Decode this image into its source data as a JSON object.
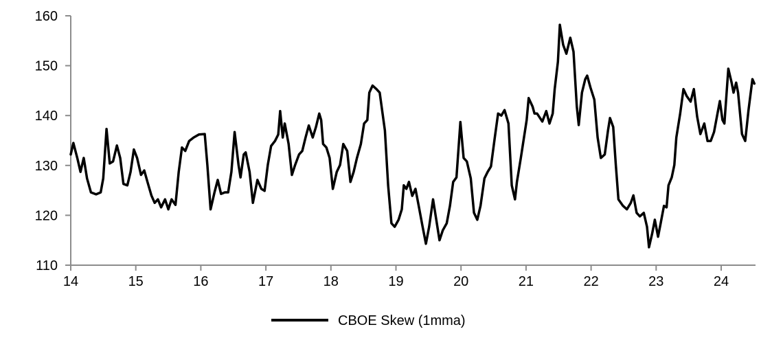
{
  "chart_data": {
    "type": "line",
    "title": "",
    "xlabel": "",
    "ylabel": "",
    "xlim": [
      14,
      24.53
    ],
    "ylim": [
      110,
      160
    ],
    "x_ticks": [
      "14",
      "15",
      "16",
      "17",
      "18",
      "19",
      "20",
      "21",
      "22",
      "23",
      "24"
    ],
    "y_ticks": [
      "110",
      "120",
      "130",
      "140",
      "150",
      "160"
    ],
    "grid": false,
    "legend_position": "bottom",
    "axis_color": "#8c8c8c",
    "series": [
      {
        "name": "CBOE Skew (1mma)",
        "color": "#000000",
        "points": [
          [
            14.0,
            132.2
          ],
          [
            14.04,
            134.5
          ],
          [
            14.1,
            131.5
          ],
          [
            14.15,
            128.7
          ],
          [
            14.2,
            131.5
          ],
          [
            14.25,
            127.4
          ],
          [
            14.31,
            124.6
          ],
          [
            14.39,
            124.2
          ],
          [
            14.46,
            124.6
          ],
          [
            14.5,
            127.4
          ],
          [
            14.55,
            137.3
          ],
          [
            14.6,
            130.4
          ],
          [
            14.65,
            130.8
          ],
          [
            14.71,
            134.0
          ],
          [
            14.76,
            131.5
          ],
          [
            14.81,
            126.3
          ],
          [
            14.87,
            126.0
          ],
          [
            14.92,
            128.7
          ],
          [
            14.97,
            133.2
          ],
          [
            15.02,
            131.5
          ],
          [
            15.08,
            128.1
          ],
          [
            15.13,
            129.0
          ],
          [
            15.18,
            126.7
          ],
          [
            15.24,
            124.0
          ],
          [
            15.29,
            122.5
          ],
          [
            15.34,
            123.2
          ],
          [
            15.39,
            121.6
          ],
          [
            15.45,
            123.2
          ],
          [
            15.5,
            121.2
          ],
          [
            15.55,
            123.2
          ],
          [
            15.61,
            122.1
          ],
          [
            15.66,
            128.7
          ],
          [
            15.71,
            133.6
          ],
          [
            15.76,
            132.9
          ],
          [
            15.82,
            134.9
          ],
          [
            15.89,
            135.6
          ],
          [
            15.97,
            136.2
          ],
          [
            16.06,
            136.3
          ],
          [
            16.1,
            130.1
          ],
          [
            16.15,
            121.2
          ],
          [
            16.21,
            124.6
          ],
          [
            16.26,
            127.1
          ],
          [
            16.31,
            124.3
          ],
          [
            16.37,
            124.6
          ],
          [
            16.42,
            124.6
          ],
          [
            16.47,
            128.7
          ],
          [
            16.52,
            136.7
          ],
          [
            16.58,
            130.1
          ],
          [
            16.61,
            127.6
          ],
          [
            16.66,
            132.2
          ],
          [
            16.69,
            132.6
          ],
          [
            16.75,
            128.7
          ],
          [
            16.8,
            122.5
          ],
          [
            16.87,
            127.1
          ],
          [
            16.93,
            125.3
          ],
          [
            16.98,
            124.9
          ],
          [
            17.03,
            130.1
          ],
          [
            17.08,
            133.9
          ],
          [
            17.14,
            134.9
          ],
          [
            17.19,
            136.2
          ],
          [
            17.22,
            140.9
          ],
          [
            17.26,
            135.6
          ],
          [
            17.29,
            138.4
          ],
          [
            17.35,
            134.3
          ],
          [
            17.4,
            128.1
          ],
          [
            17.45,
            130.1
          ],
          [
            17.51,
            132.2
          ],
          [
            17.56,
            132.9
          ],
          [
            17.61,
            135.6
          ],
          [
            17.66,
            138.0
          ],
          [
            17.72,
            135.6
          ],
          [
            17.77,
            137.7
          ],
          [
            17.82,
            140.4
          ],
          [
            17.85,
            139.1
          ],
          [
            17.88,
            134.3
          ],
          [
            17.93,
            133.6
          ],
          [
            17.98,
            131.5
          ],
          [
            18.03,
            125.3
          ],
          [
            18.09,
            128.7
          ],
          [
            18.14,
            130.1
          ],
          [
            18.19,
            134.3
          ],
          [
            18.25,
            132.9
          ],
          [
            18.3,
            126.7
          ],
          [
            18.35,
            128.7
          ],
          [
            18.4,
            131.5
          ],
          [
            18.46,
            134.3
          ],
          [
            18.51,
            138.4
          ],
          [
            18.56,
            139.1
          ],
          [
            18.59,
            144.6
          ],
          [
            18.64,
            146.0
          ],
          [
            18.7,
            145.3
          ],
          [
            18.75,
            144.6
          ],
          [
            18.83,
            137.0
          ],
          [
            18.88,
            126.0
          ],
          [
            18.93,
            118.4
          ],
          [
            18.98,
            117.7
          ],
          [
            19.04,
            119.1
          ],
          [
            19.09,
            121.2
          ],
          [
            19.12,
            126.0
          ],
          [
            19.16,
            125.3
          ],
          [
            19.2,
            126.7
          ],
          [
            19.25,
            123.9
          ],
          [
            19.3,
            125.3
          ],
          [
            19.35,
            121.9
          ],
          [
            19.41,
            117.7
          ],
          [
            19.46,
            114.3
          ],
          [
            19.51,
            117.7
          ],
          [
            19.57,
            123.2
          ],
          [
            19.62,
            119.1
          ],
          [
            19.67,
            115.0
          ],
          [
            19.72,
            117.0
          ],
          [
            19.78,
            118.4
          ],
          [
            19.83,
            121.9
          ],
          [
            19.88,
            126.7
          ],
          [
            19.93,
            127.6
          ],
          [
            19.99,
            138.7
          ],
          [
            20.04,
            131.5
          ],
          [
            20.09,
            130.8
          ],
          [
            20.15,
            127.4
          ],
          [
            20.2,
            120.5
          ],
          [
            20.25,
            119.1
          ],
          [
            20.3,
            121.9
          ],
          [
            20.36,
            127.4
          ],
          [
            20.41,
            128.7
          ],
          [
            20.46,
            129.8
          ],
          [
            20.52,
            135.6
          ],
          [
            20.57,
            140.4
          ],
          [
            20.62,
            140.0
          ],
          [
            20.67,
            141.1
          ],
          [
            20.73,
            138.4
          ],
          [
            20.78,
            126.0
          ],
          [
            20.83,
            123.2
          ],
          [
            20.86,
            126.7
          ],
          [
            20.92,
            131.5
          ],
          [
            20.96,
            134.9
          ],
          [
            21.01,
            139.1
          ],
          [
            21.04,
            143.5
          ],
          [
            21.1,
            141.8
          ],
          [
            21.13,
            140.4
          ],
          [
            21.17,
            140.4
          ],
          [
            21.25,
            138.8
          ],
          [
            21.31,
            140.9
          ],
          [
            21.36,
            138.4
          ],
          [
            21.41,
            140.4
          ],
          [
            21.44,
            145.3
          ],
          [
            21.49,
            150.8
          ],
          [
            21.52,
            158.2
          ],
          [
            21.57,
            154.2
          ],
          [
            21.62,
            152.4
          ],
          [
            21.68,
            155.6
          ],
          [
            21.73,
            152.8
          ],
          [
            21.78,
            141.8
          ],
          [
            21.81,
            138.1
          ],
          [
            21.86,
            144.6
          ],
          [
            21.91,
            147.3
          ],
          [
            21.94,
            148.0
          ],
          [
            21.99,
            145.6
          ],
          [
            22.05,
            143.2
          ],
          [
            22.1,
            135.6
          ],
          [
            22.15,
            131.5
          ],
          [
            22.21,
            132.2
          ],
          [
            22.26,
            137.0
          ],
          [
            22.29,
            139.5
          ],
          [
            22.34,
            137.7
          ],
          [
            22.38,
            130.1
          ],
          [
            22.42,
            123.2
          ],
          [
            22.49,
            121.9
          ],
          [
            22.55,
            121.2
          ],
          [
            22.61,
            122.5
          ],
          [
            22.65,
            124.0
          ],
          [
            22.7,
            120.5
          ],
          [
            22.75,
            119.8
          ],
          [
            22.81,
            120.5
          ],
          [
            22.86,
            117.7
          ],
          [
            22.89,
            113.6
          ],
          [
            22.94,
            116.4
          ],
          [
            22.98,
            119.1
          ],
          [
            23.03,
            115.7
          ],
          [
            23.07,
            118.4
          ],
          [
            23.12,
            121.9
          ],
          [
            23.16,
            121.6
          ],
          [
            23.19,
            126.0
          ],
          [
            23.24,
            127.6
          ],
          [
            23.28,
            130.1
          ],
          [
            23.31,
            135.6
          ],
          [
            23.37,
            140.4
          ],
          [
            23.42,
            145.3
          ],
          [
            23.47,
            143.9
          ],
          [
            23.53,
            142.8
          ],
          [
            23.58,
            145.3
          ],
          [
            23.63,
            139.8
          ],
          [
            23.68,
            136.3
          ],
          [
            23.74,
            138.4
          ],
          [
            23.79,
            134.9
          ],
          [
            23.84,
            134.9
          ],
          [
            23.89,
            136.7
          ],
          [
            23.95,
            140.9
          ],
          [
            23.98,
            142.9
          ],
          [
            24.02,
            139.1
          ],
          [
            24.05,
            138.4
          ],
          [
            24.11,
            149.4
          ],
          [
            24.16,
            146.6
          ],
          [
            24.19,
            144.6
          ],
          [
            24.23,
            146.6
          ],
          [
            24.26,
            144.6
          ],
          [
            24.32,
            136.3
          ],
          [
            24.37,
            134.9
          ],
          [
            24.42,
            141.1
          ],
          [
            24.48,
            147.3
          ],
          [
            24.51,
            146.4
          ]
        ]
      }
    ]
  }
}
